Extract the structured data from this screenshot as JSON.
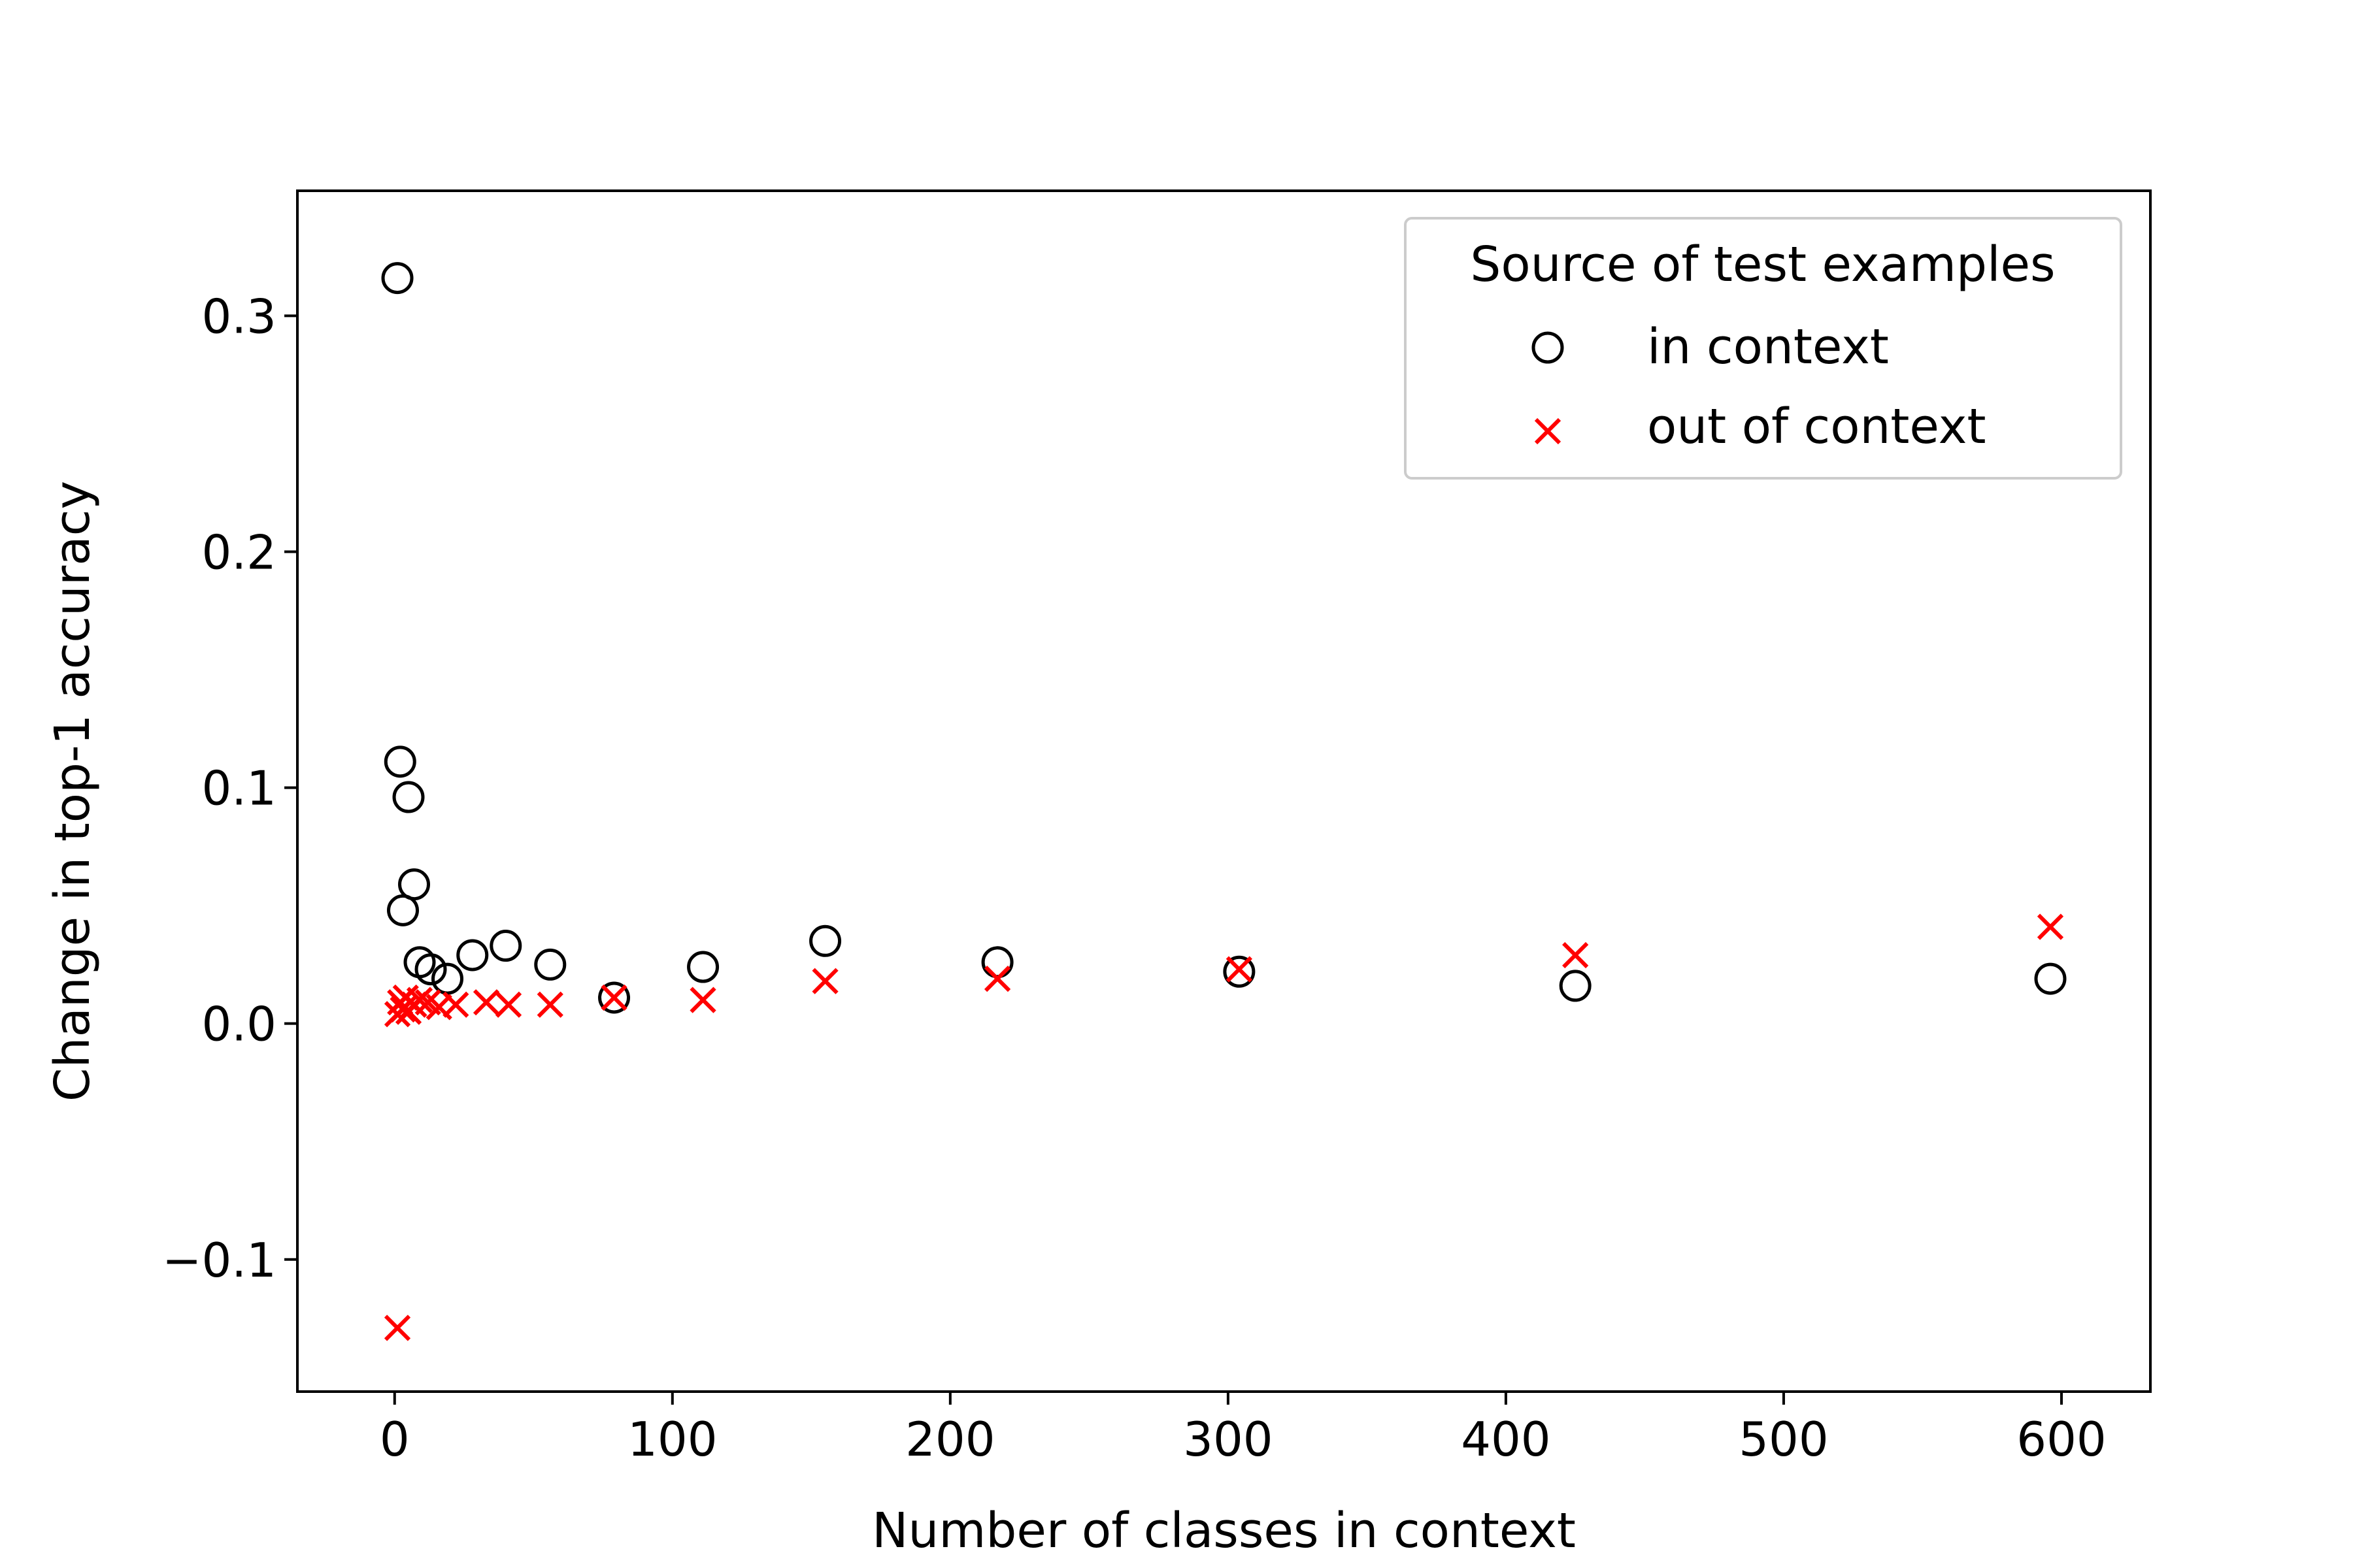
{
  "chart_data": {
    "type": "scatter",
    "title": "",
    "xlabel": "Number of classes in context",
    "ylabel": "Change in top-1 accuracy",
    "xlim": [
      -35,
      632
    ],
    "ylim": [
      -0.156,
      0.353
    ],
    "xticks": [
      0,
      100,
      200,
      300,
      400,
      500,
      600
    ],
    "xtick_labels": [
      "0",
      "100",
      "200",
      "300",
      "400",
      "500",
      "600"
    ],
    "yticks": [
      -0.1,
      0.0,
      0.1,
      0.2,
      0.3
    ],
    "ytick_labels": [
      "−0.1",
      "0.0",
      "0.1",
      "0.2",
      "0.3"
    ],
    "grid": false,
    "legend": {
      "title": "Source of test examples",
      "position": "top-right"
    },
    "series": [
      {
        "name": "in context",
        "marker": "circle-open",
        "color": "#000000",
        "points": [
          [
            1,
            0.316
          ],
          [
            2,
            0.111
          ],
          [
            3,
            0.048
          ],
          [
            5,
            0.096
          ],
          [
            7,
            0.059
          ],
          [
            9,
            0.026
          ],
          [
            13,
            0.023
          ],
          [
            19,
            0.019
          ],
          [
            28,
            0.029
          ],
          [
            40,
            0.033
          ],
          [
            56,
            0.025
          ],
          [
            79,
            0.011
          ],
          [
            111,
            0.024
          ],
          [
            155,
            0.035
          ],
          [
            217,
            0.026
          ],
          [
            304,
            0.022
          ],
          [
            425,
            0.016
          ],
          [
            596,
            0.019
          ]
        ]
      },
      {
        "name": "out of context",
        "marker": "x",
        "color": "#ff0000",
        "points": [
          [
            1,
            -0.129
          ],
          [
            1,
            0.004
          ],
          [
            2,
            0.009
          ],
          [
            3,
            0.006
          ],
          [
            4,
            0.011
          ],
          [
            5,
            0.005
          ],
          [
            7,
            0.008
          ],
          [
            9,
            0.01
          ],
          [
            12,
            0.009
          ],
          [
            16,
            0.007
          ],
          [
            22,
            0.008
          ],
          [
            33,
            0.009
          ],
          [
            41,
            0.008
          ],
          [
            56,
            0.008
          ],
          [
            79,
            0.011
          ],
          [
            111,
            0.01
          ],
          [
            155,
            0.018
          ],
          [
            217,
            0.019
          ],
          [
            304,
            0.023
          ],
          [
            425,
            0.029
          ],
          [
            596,
            0.041
          ]
        ]
      }
    ]
  }
}
